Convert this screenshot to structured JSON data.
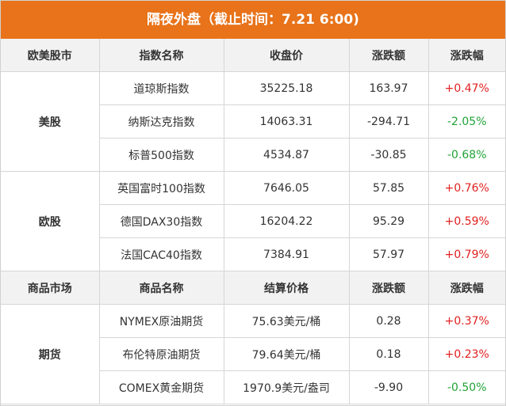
{
  "title": "隔夜外盘（截止时间：7.21 6:00)",
  "title_color": "#e8731a",
  "up_color": "#e02020",
  "down_color": "#21a337",
  "sections": [
    {
      "header": [
        "欧美股市",
        "指数名称",
        "收盘价",
        "涨跌额",
        "涨跌幅"
      ],
      "groups": [
        {
          "label": "美股",
          "rows": [
            [
              "道琼斯指数",
              "35225.18",
              "163.97",
              "+0.47%"
            ],
            [
              "纳斯达克指数",
              "14063.31",
              "-294.71",
              "-2.05%"
            ],
            [
              "标普500指数",
              "4534.87",
              "-30.85",
              "-0.68%"
            ]
          ]
        },
        {
          "label": "欧股",
          "rows": [
            [
              "英国富时100指数",
              "7646.05",
              "57.85",
              "+0.76%"
            ],
            [
              "德国DAX30指数",
              "16204.22",
              "95.29",
              "+0.59%"
            ],
            [
              "法国CAC40指数",
              "7384.91",
              "57.97",
              "+0.79%"
            ]
          ]
        }
      ]
    },
    {
      "header": [
        "商品市场",
        "商品名称",
        "结算价格",
        "涨跌额",
        "涨跌幅"
      ],
      "groups": [
        {
          "label": "期货",
          "rows": [
            [
              "NYMEX原油期货",
              "75.63美元/桶",
              "0.28",
              "+0.37%"
            ],
            [
              "布伦特原油期货",
              "79.64美元/桶",
              "0.18",
              "+0.23%"
            ],
            [
              "COMEX黄金期货",
              "1970.9美元/盎司",
              "-9.90",
              "-0.50%"
            ]
          ]
        }
      ]
    }
  ]
}
